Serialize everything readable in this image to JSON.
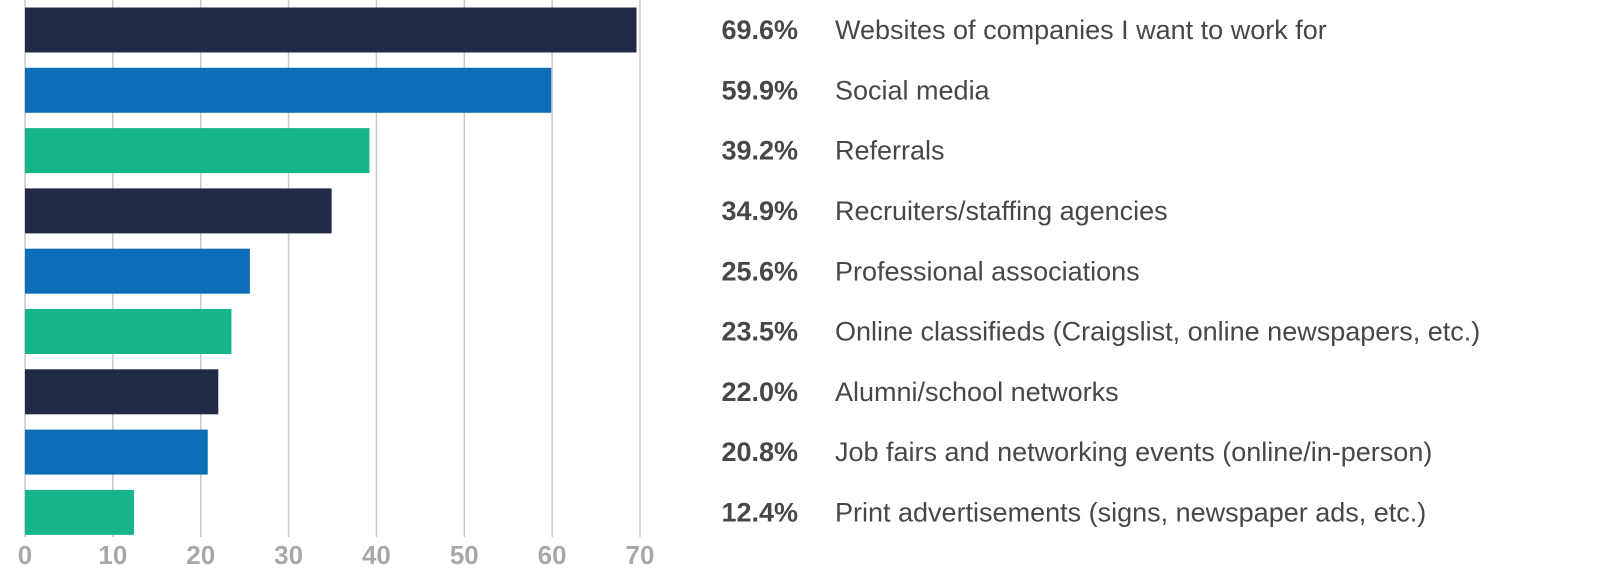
{
  "chart_data": {
    "type": "bar",
    "orientation": "horizontal",
    "categories": [
      "Websites of companies I want to work for",
      "Social media",
      "Referrals",
      "Recruiters/staffing agencies",
      "Professional associations",
      "Online classifieds (Craigslist, online newspapers, etc.)",
      "Alumni/school networks",
      "Job fairs and networking events (online/in-person)",
      "Print advertisements (signs, newspaper ads, etc.)"
    ],
    "values": [
      69.6,
      59.9,
      39.2,
      34.9,
      25.6,
      23.5,
      22.0,
      20.8,
      12.4
    ],
    "value_labels": [
      "69.6%",
      "59.9%",
      "39.2%",
      "34.9%",
      "25.6%",
      "23.5%",
      "22.0%",
      "20.8%",
      "12.4%"
    ],
    "colors": [
      "#222b45",
      "#0d6eb8",
      "#17b68a",
      "#222b45",
      "#0d6eb8",
      "#17b68a",
      "#222b45",
      "#0d6eb8",
      "#17b68a"
    ],
    "xlim": [
      0,
      70
    ],
    "xticks": [
      0,
      10,
      20,
      30,
      40,
      50,
      60,
      70
    ],
    "grid": true
  }
}
